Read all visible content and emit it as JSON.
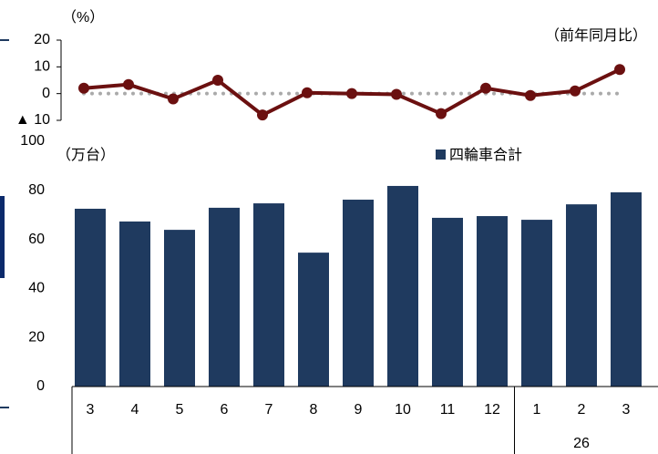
{
  "chart_data": [
    {
      "type": "line",
      "y_label": "（%）",
      "annotation": "（前年同月比）",
      "values": [
        2,
        3.4,
        -2,
        5,
        -8,
        0.3,
        0,
        -0.3,
        -7.5,
        2,
        -0.7,
        1,
        9
      ],
      "color": "#6b1010",
      "ylim": [
        -10,
        20
      ],
      "yticks": [
        {
          "value": -10,
          "label": "▲ 10"
        },
        0,
        10,
        20
      ]
    },
    {
      "type": "bar",
      "y_label": "（万台）",
      "categories": [
        "3",
        "4",
        "5",
        "6",
        "7",
        "8",
        "9",
        "10",
        "11",
        "12",
        "1",
        "2",
        "3"
      ],
      "x_groups": [
        {
          "label": null,
          "count": 10
        },
        {
          "label": "26",
          "count": 3
        }
      ],
      "series": [
        {
          "name": "四輪車合計",
          "color": "#1f3a5f",
          "values": [
            72.5,
            67.3,
            63.9,
            72.9,
            74.7,
            54.6,
            76.2,
            81.8,
            68.8,
            69.5,
            68,
            74.3,
            79.2
          ]
        }
      ],
      "ylim": [
        0,
        100
      ],
      "yticks": [
        0,
        20,
        40,
        60,
        80,
        100
      ]
    }
  ]
}
